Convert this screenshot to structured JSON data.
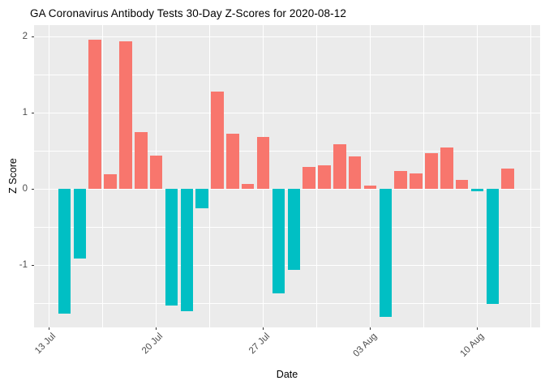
{
  "title": "GA Coronavirus Antibody Tests 30-Day Z-Scores for 2020-08-12",
  "chart_data": {
    "type": "bar",
    "title": "GA Coronavirus Antibody Tests 30-Day Z-Scores for 2020-08-12",
    "xlabel": "Date",
    "ylabel": "Z Score",
    "x": [
      "2020-07-14",
      "2020-07-15",
      "2020-07-16",
      "2020-07-17",
      "2020-07-18",
      "2020-07-19",
      "2020-07-20",
      "2020-07-21",
      "2020-07-22",
      "2020-07-23",
      "2020-07-24",
      "2020-07-25",
      "2020-07-26",
      "2020-07-27",
      "2020-07-28",
      "2020-07-29",
      "2020-07-30",
      "2020-07-31",
      "2020-08-01",
      "2020-08-02",
      "2020-08-03",
      "2020-08-04",
      "2020-08-05",
      "2020-08-06",
      "2020-08-07",
      "2020-08-08",
      "2020-08-09",
      "2020-08-10",
      "2020-08-11",
      "2020-08-12"
    ],
    "values": [
      -1.64,
      -0.91,
      1.96,
      0.2,
      1.94,
      0.75,
      0.44,
      -1.53,
      -1.6,
      -0.25,
      1.28,
      0.73,
      0.07,
      0.68,
      -1.37,
      -1.06,
      0.29,
      0.31,
      0.59,
      0.43,
      0.05,
      -1.68,
      0.24,
      0.21,
      0.47,
      0.55,
      0.12,
      -0.03,
      -1.51,
      0.27
    ],
    "x_ticks": [
      {
        "label": "13 Jul",
        "day_offset": -1
      },
      {
        "label": "20 Jul",
        "day_offset": 6
      },
      {
        "label": "27 Jul",
        "day_offset": 13
      },
      {
        "label": "03 Aug",
        "day_offset": 20
      },
      {
        "label": "10 Aug",
        "day_offset": 27
      }
    ],
    "y_ticks": [
      {
        "label": "2",
        "value": 2
      },
      {
        "label": "1",
        "value": 1
      },
      {
        "label": "0",
        "value": 0
      },
      {
        "label": "-1",
        "value": -1
      }
    ],
    "y_minor_gridlines": [
      1.5,
      0.5,
      -0.5,
      -1.5
    ],
    "ylim": [
      -1.85,
      2.15
    ],
    "grid": true,
    "legend_position": "none",
    "colors": {
      "positive_bar": "#F8766D",
      "negative_bar": "#00BFC4",
      "panel_background": "#EBEBEB",
      "gridline": "#FFFFFF",
      "tick_label_text": "#4D4D4D",
      "axis_text": "#000000"
    }
  }
}
